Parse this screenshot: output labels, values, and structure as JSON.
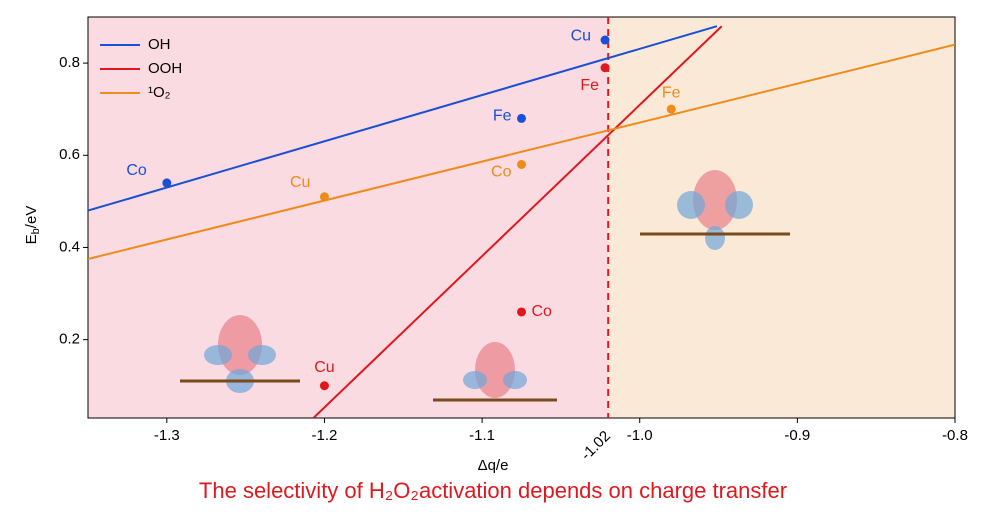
{
  "chart_data": {
    "type": "line",
    "title": "The selectivity of H₂O₂activation depends on charge transfer",
    "xlabel": "Δq/e",
    "ylabel": [
      "E",
      "b",
      "/eV"
    ],
    "xlim": [
      -1.35,
      -0.8
    ],
    "ylim": [
      0.03,
      0.9
    ],
    "xticks": [
      -1.3,
      -1.2,
      -1.1,
      {
        "value": -1,
        "label": "-1.0"
      },
      -0.9,
      -0.8
    ],
    "yticks": [
      0.2,
      0.4,
      0.6,
      0.8
    ],
    "threshold": {
      "value": -1.02,
      "label": "-1.02",
      "color": "#e0181e"
    },
    "regions": [
      {
        "color": "#fadbe2"
      },
      {
        "color": "#fbe9d8"
      }
    ],
    "legend": "upper left",
    "series": [
      {
        "name": "OH",
        "color": "#1a4fd6",
        "x": [
          -1.35,
          -0.951
        ],
        "values": [
          0.48,
          0.88
        ]
      },
      {
        "name": "OOH",
        "color": "#e0181e",
        "x": [
          -1.207,
          -0.948
        ],
        "values": [
          0.03,
          0.88
        ]
      },
      {
        "name": "¹O₂",
        "color": "#f08a1a",
        "x": [
          -1.35,
          -0.8
        ],
        "values": [
          0.375,
          0.84
        ]
      }
    ],
    "points": [
      {
        "label": "Co",
        "x": -1.3,
        "y": 0.54,
        "color": "#1a4fd6"
      },
      {
        "label": "Cu",
        "x": -1.022,
        "y": 0.85,
        "color": "#1a4fd6"
      },
      {
        "label": "Fe",
        "x": -1.075,
        "y": 0.68,
        "color": "#1a4fd6"
      },
      {
        "label": "Fe",
        "x": -1.022,
        "y": 0.79,
        "color": "#e0181e"
      },
      {
        "label": "Co",
        "x": -1.075,
        "y": 0.26,
        "color": "#e0181e"
      },
      {
        "label": "Cu",
        "x": -1.2,
        "y": 0.1,
        "color": "#e0181e"
      },
      {
        "label": "Cu",
        "x": -1.2,
        "y": 0.51,
        "color": "#f08a1a"
      },
      {
        "label": "Co",
        "x": -1.075,
        "y": 0.58,
        "color": "#f08a1a"
      },
      {
        "label": "Fe",
        "x": -0.98,
        "y": 0.7,
        "color": "#f08a1a"
      }
    ]
  }
}
